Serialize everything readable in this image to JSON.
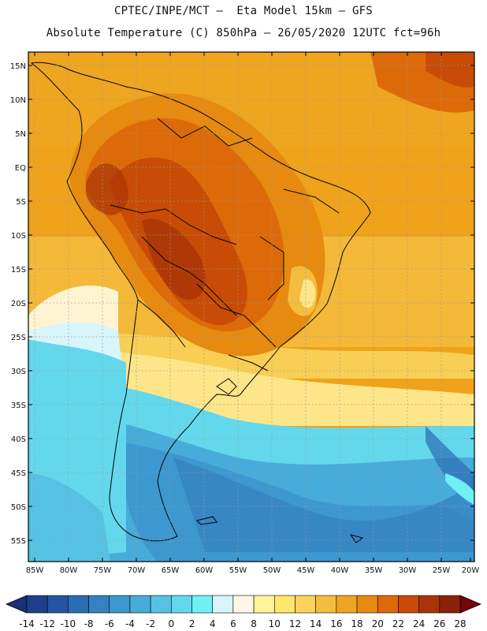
{
  "header": {
    "line1": "CPTEC/INPE/MCT –  Eta Model 15km – GFS",
    "line2": "Absolute Temperature (C) 850hPa – 26/05/2020 12UTC fct=96h"
  },
  "map": {
    "lat_labels": [
      "15N",
      "10N",
      "5N",
      "EQ",
      "5S",
      "10S",
      "15S",
      "20S",
      "25S",
      "30S",
      "35S",
      "40S",
      "45S",
      "50S",
      "55S"
    ],
    "lon_labels": [
      "85W",
      "80W",
      "75W",
      "70W",
      "65W",
      "60W",
      "55W",
      "50W",
      "45W",
      "40W",
      "35W",
      "30W",
      "25W",
      "20W"
    ]
  },
  "colorbar": {
    "labels": [
      "-14",
      "-12",
      "-10",
      "-8",
      "-6",
      "-4",
      "-2",
      "0",
      "2",
      "4",
      "6",
      "8",
      "10",
      "12",
      "14",
      "16",
      "18",
      "20",
      "22",
      "24",
      "26",
      "28"
    ],
    "colors": [
      "#1f3f8c",
      "#2455a0",
      "#2b6cb3",
      "#3582c2",
      "#3d98cf",
      "#47acd9",
      "#55c2e3",
      "#63d8ec",
      "#70f0f5",
      "#d7f5fb",
      "#fff8e8",
      "#fff49a",
      "#ffe66e",
      "#fbd35a",
      "#f5bd3e",
      "#eea51f",
      "#e68a10",
      "#dd6a08",
      "#c84c05",
      "#a83507",
      "#8a2109"
    ],
    "under_color": "#1b2f7a",
    "over_color": "#75050c"
  }
}
